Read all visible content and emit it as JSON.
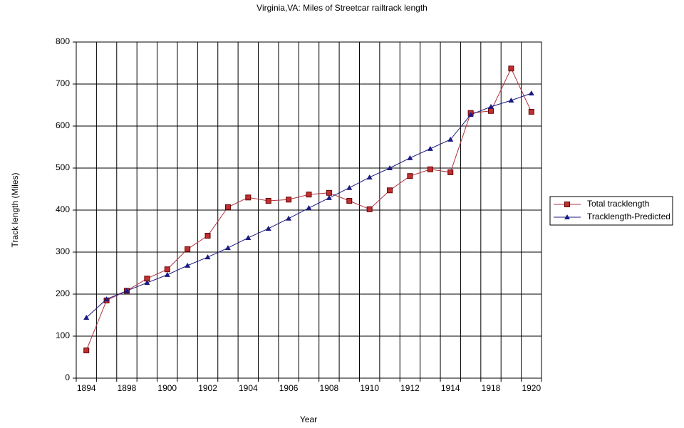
{
  "chart_data": {
    "type": "line",
    "title": "Virginia,VA: Miles of Streetcar railtrack length",
    "x_label": "Year",
    "y_label": "Track length (Miles)",
    "categories": [
      "1894",
      null,
      "1898",
      null,
      "1900",
      null,
      "1902",
      null,
      "1904",
      null,
      "1906",
      null,
      "1908",
      null,
      "1910",
      null,
      "1912",
      null,
      "1914",
      null,
      "1918",
      null,
      "1920"
    ],
    "series": [
      {
        "name": "Total tracklength",
        "color": "#b03040",
        "marker": "square",
        "values": [
          66,
          185,
          208,
          237,
          259,
          307,
          339,
          407,
          430,
          422,
          425,
          437,
          441,
          422,
          402,
          447,
          481,
          497,
          490,
          631,
          636,
          737,
          634
        ]
      },
      {
        "name": "Tracklength-Predicted",
        "color": "#1a1a80",
        "marker": "triangle",
        "values": [
          144,
          188,
          208,
          227,
          246,
          268,
          288,
          310,
          334,
          356,
          380,
          405,
          429,
          453,
          478,
          500,
          524,
          546,
          568,
          627,
          646,
          661,
          678
        ]
      }
    ],
    "ylim": [
      0,
      800
    ],
    "yticks": [
      0,
      100,
      200,
      300,
      400,
      500,
      600,
      700,
      800
    ],
    "grid": true,
    "legend": "right"
  }
}
